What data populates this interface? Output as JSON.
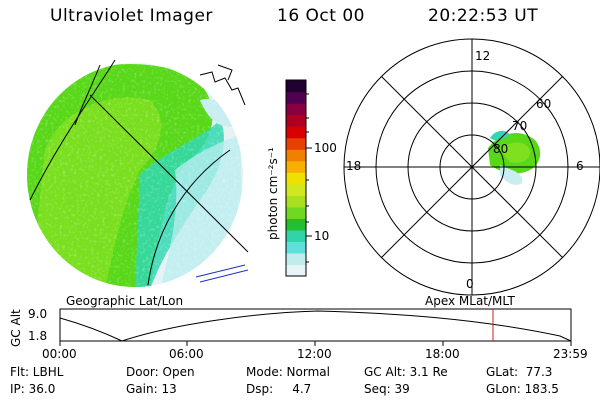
{
  "header": {
    "instrument": "Ultraviolet Imager",
    "date": "16 Oct 00",
    "time": "20:22:53 UT"
  },
  "colorbar": {
    "unit_label": "photon cm⁻²s⁻¹",
    "ticks": [
      "100",
      "10"
    ],
    "scale": "log",
    "colors": [
      "#e8f4f6",
      "#c0ecee",
      "#60e0dc",
      "#30d4a8",
      "#20c030",
      "#70d820",
      "#a8e020",
      "#d0e820",
      "#f0e000",
      "#f8b000",
      "#f08000",
      "#e84000",
      "#d80000",
      "#b00020",
      "#880040",
      "#500050",
      "#200030"
    ]
  },
  "polar_plot": {
    "hour_labels": {
      "top": "12",
      "bottom": "0",
      "left": "18",
      "right": "6"
    },
    "lat_labels": [
      "80",
      "70",
      "60"
    ]
  },
  "strip": {
    "axis_label": "GC Alt",
    "ymax": "9.0",
    "ymin": "1.8",
    "left_title": "Geographic Lat/Lon",
    "right_title": "Apex MLat/MLT",
    "time_ticks": [
      "00:00",
      "06:00",
      "12:00",
      "18:00",
      "23:59"
    ],
    "marker_color": "#d02020"
  },
  "params": {
    "flt": "Flt: LBHL",
    "ip": "IP: 36.0",
    "door": "Door: Open",
    "gain": "Gain: 13",
    "mode": "Mode: Normal",
    "dsp": "Dsp:     4.7",
    "gcalt": "GC Alt: 3.1 Re",
    "seq": "Seq: 39",
    "glat": "GLat:  77.3",
    "glon": "GLon: 183.5"
  }
}
